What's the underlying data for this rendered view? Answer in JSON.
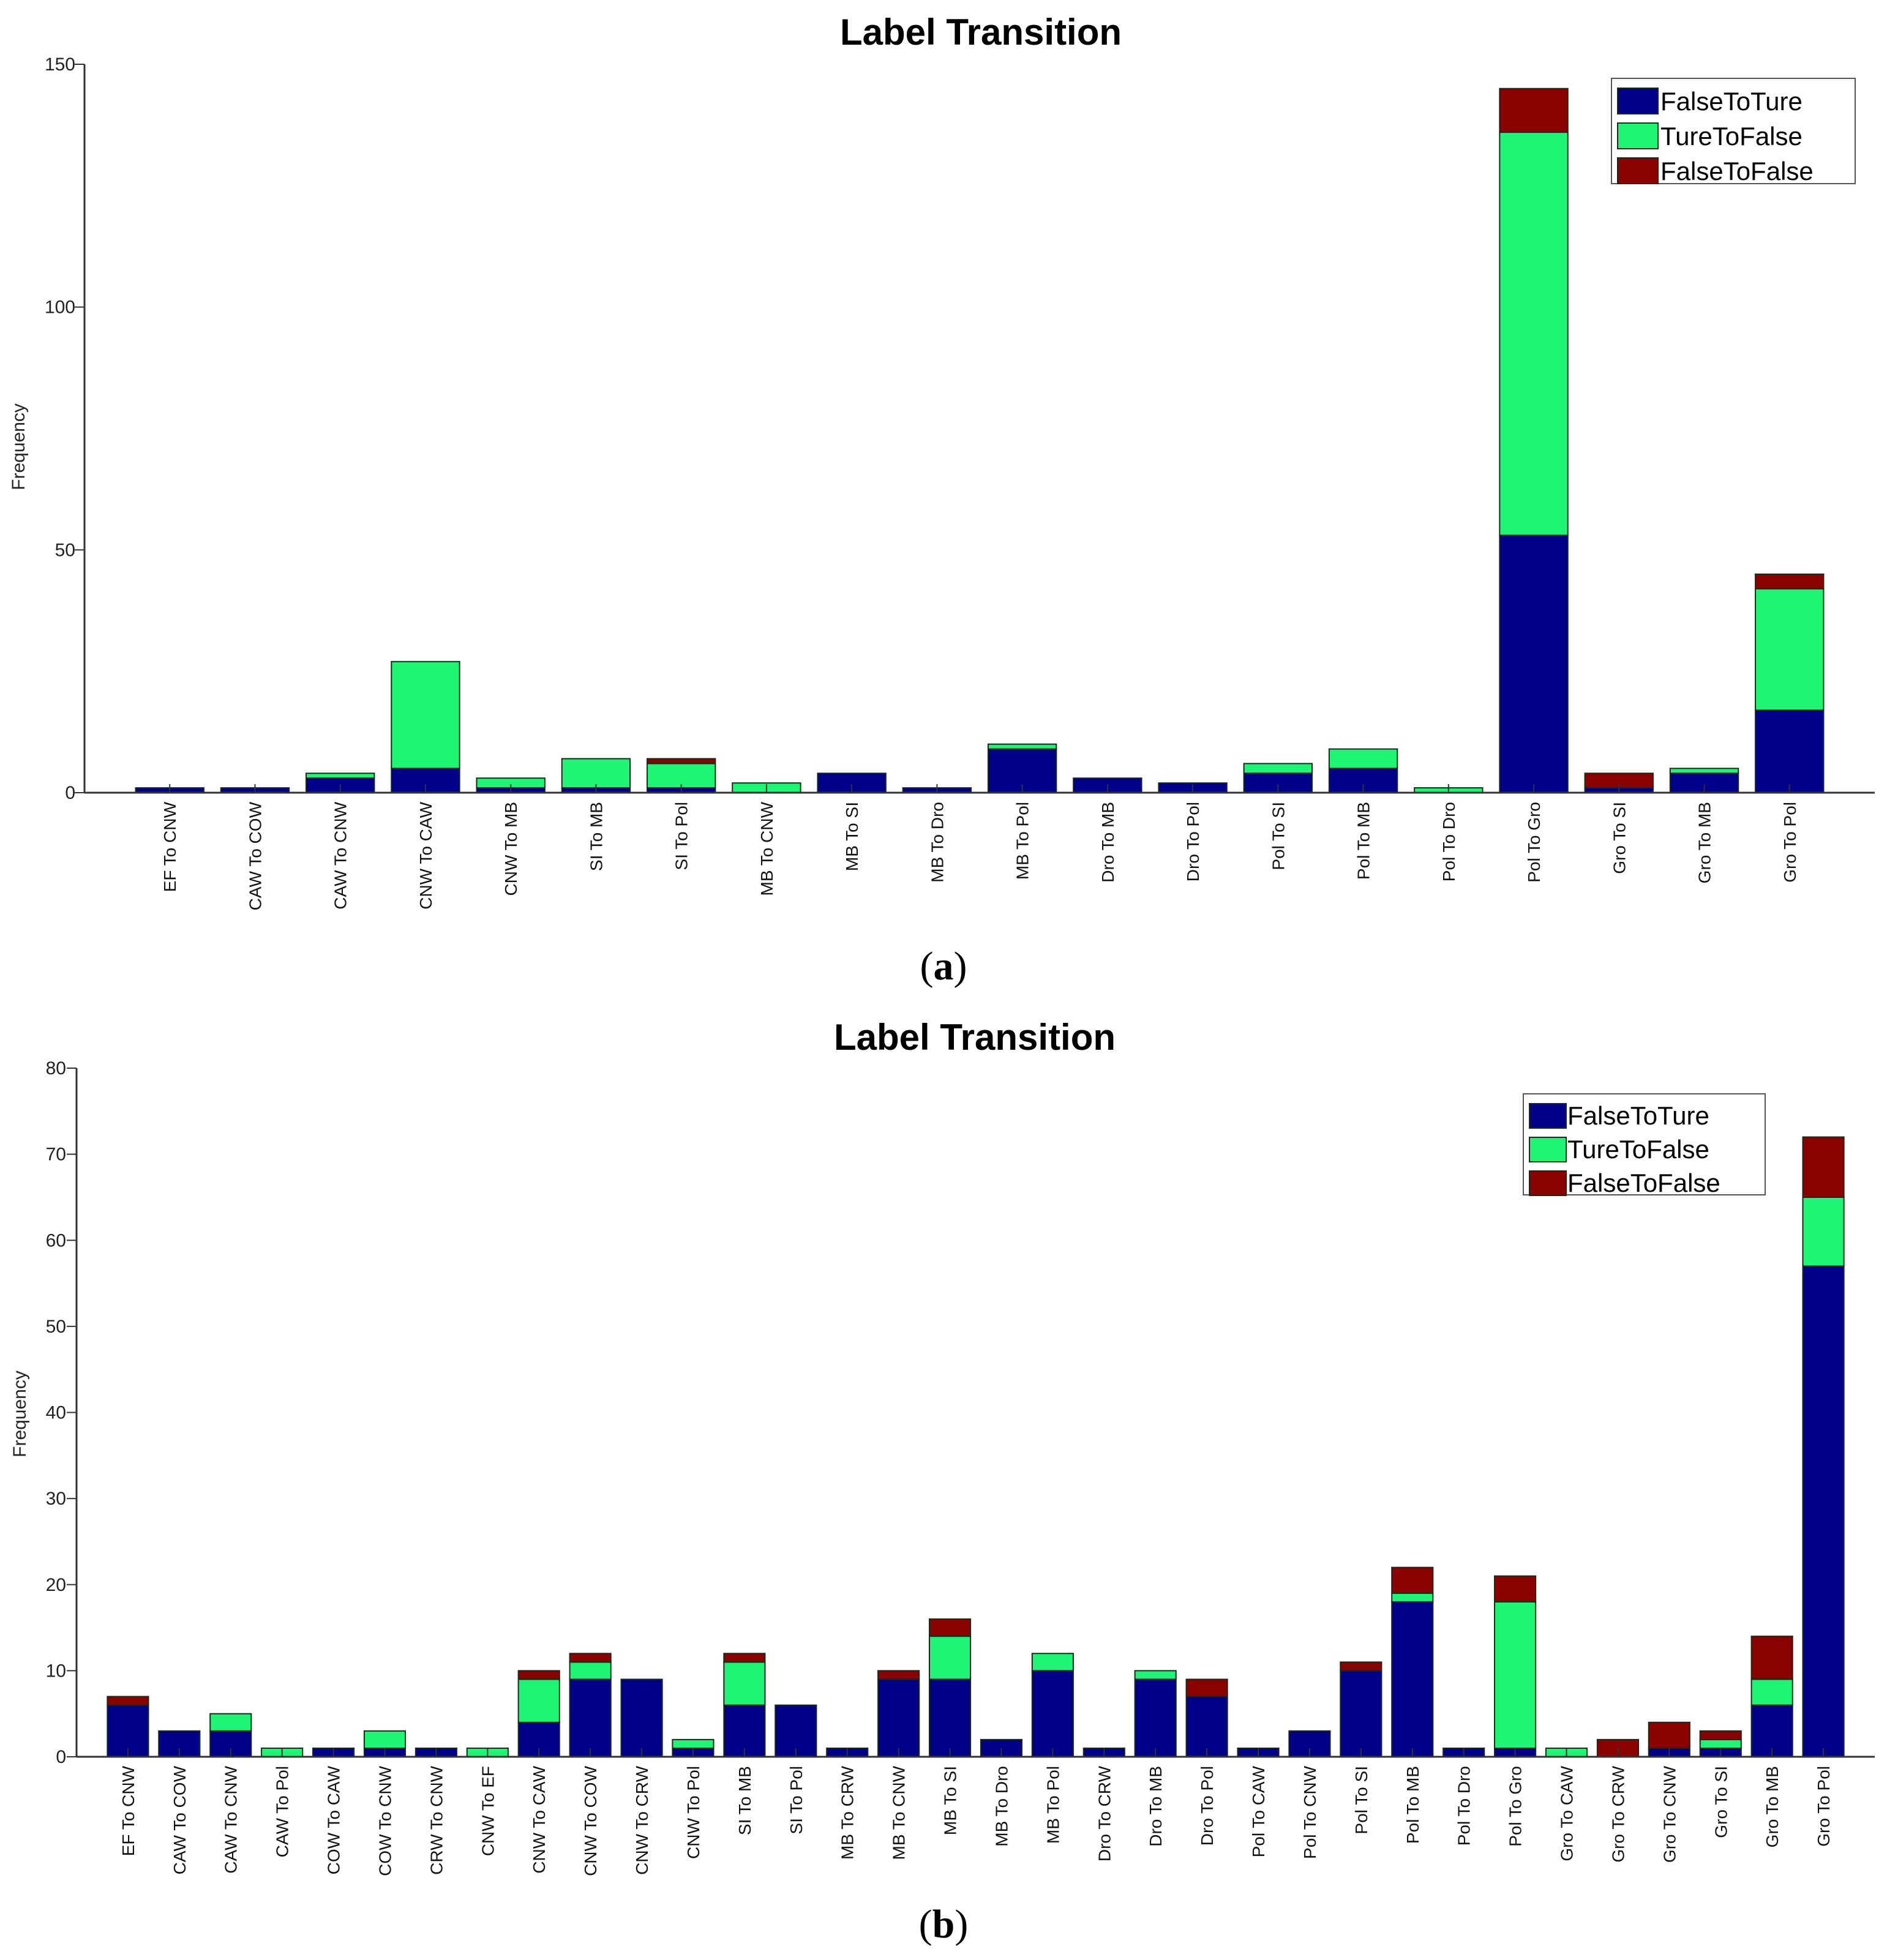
{
  "colors": {
    "FalseToTure": "#00008B",
    "TureToFalse": "#1EF575",
    "FalseToFalse": "#8B0000"
  },
  "chart_data": [
    {
      "type": "bar",
      "stacked": true,
      "title": "Label Transition",
      "caption": "a",
      "xlabel": "",
      "ylabel": "Frequency",
      "ylim": [
        0,
        150
      ],
      "yticks": [
        0,
        50,
        100,
        150
      ],
      "legend_placement": "top-right",
      "categories": [
        "EF To CNW",
        "CAW To COW",
        "CAW To CNW",
        "CNW To CAW",
        "CNW To MB",
        "SI To MB",
        "SI To Pol",
        "MB To CNW",
        "MB To SI",
        "MB To Dro",
        "MB To Pol",
        "Dro To MB",
        "Dro To Pol",
        "Pol To SI",
        "Pol To MB",
        "Pol To Dro",
        "Pol To Gro",
        "Gro To SI",
        "Gro To MB",
        "Gro To Pol"
      ],
      "series": [
        {
          "name": "FalseToTure",
          "values": [
            1,
            1,
            3,
            5,
            1,
            1,
            1,
            0,
            4,
            1,
            9,
            3,
            2,
            4,
            5,
            0,
            53,
            1,
            4,
            17
          ]
        },
        {
          "name": "TureToFalse",
          "values": [
            0,
            0,
            1,
            22,
            2,
            6,
            5,
            2,
            0,
            0,
            1,
            0,
            0,
            2,
            4,
            1,
            83,
            0,
            1,
            25
          ]
        },
        {
          "name": "FalseToFalse",
          "values": [
            0,
            0,
            0,
            0,
            0,
            0,
            1,
            0,
            0,
            0,
            0,
            0,
            0,
            0,
            0,
            0,
            9,
            3,
            0,
            3
          ]
        }
      ]
    },
    {
      "type": "bar",
      "stacked": true,
      "title": "Label Transition",
      "caption": "b",
      "xlabel": "",
      "ylabel": "Frequency",
      "ylim": [
        0,
        80
      ],
      "yticks": [
        0,
        10,
        20,
        30,
        40,
        50,
        60,
        70,
        80
      ],
      "legend_placement": "top-right",
      "categories": [
        "EF To CNW",
        "CAW To COW",
        "CAW To CNW",
        "CAW To Pol",
        "COW To CAW",
        "COW To CNW",
        "CRW To CNW",
        "CNW To EF",
        "CNW To CAW",
        "CNW To COW",
        "CNW To CRW",
        "CNW To Pol",
        "SI To MB",
        "SI To Pol",
        "MB To CRW",
        "MB To CNW",
        "MB To SI",
        "MB To Dro",
        "MB To Pol",
        "Dro To CRW",
        "Dro To MB",
        "Dro To Pol",
        "Pol To CAW",
        "Pol To CNW",
        "Pol To SI",
        "Pol To MB",
        "Pol To Dro",
        "Pol To Gro",
        "Gro To CAW",
        "Gro To CRW",
        "Gro To CNW",
        "Gro To SI",
        "Gro To MB",
        "Gro To Pol"
      ],
      "series": [
        {
          "name": "FalseToTure",
          "values": [
            6,
            3,
            3,
            0,
            1,
            1,
            1,
            0,
            4,
            9,
            9,
            1,
            6,
            6,
            1,
            9,
            9,
            2,
            10,
            1,
            9,
            7,
            1,
            3,
            10,
            18,
            1,
            1,
            0,
            0,
            1,
            1,
            6,
            57
          ]
        },
        {
          "name": "TureToFalse",
          "values": [
            0,
            0,
            2,
            1,
            0,
            2,
            0,
            1,
            5,
            2,
            0,
            1,
            5,
            0,
            0,
            0,
            5,
            0,
            2,
            0,
            1,
            0,
            0,
            0,
            0,
            1,
            0,
            17,
            1,
            0,
            0,
            1,
            3,
            8
          ]
        },
        {
          "name": "FalseToFalse",
          "values": [
            1,
            0,
            0,
            0,
            0,
            0,
            0,
            0,
            1,
            1,
            0,
            0,
            1,
            0,
            0,
            1,
            2,
            0,
            0,
            0,
            0,
            2,
            0,
            0,
            1,
            3,
            0,
            3,
            0,
            2,
            3,
            1,
            5,
            7
          ]
        }
      ]
    }
  ]
}
